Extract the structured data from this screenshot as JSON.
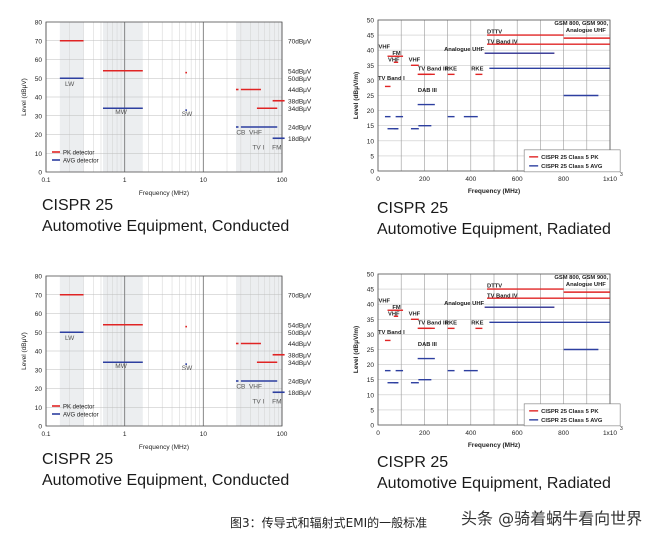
{
  "chart_data": [
    {
      "type": "line",
      "title": "CISPR 25",
      "subtitle": "Automotive Equipment, Conducted",
      "xlabel": "Frequency (MHz)",
      "ylabel": "Level (dBμV)",
      "x_scale": "log",
      "xlim": [
        0.1,
        100
      ],
      "ylim": [
        0,
        80
      ],
      "x_ticks": [
        "0.1",
        "1",
        "10",
        "100"
      ],
      "y_ticks": [
        "0",
        "10",
        "20",
        "30",
        "40",
        "50",
        "60",
        "70",
        "80"
      ],
      "right_labels": [
        {
          "text": "70dBμV",
          "y": 70
        },
        {
          "text": "54dBμV",
          "y": 54
        },
        {
          "text": "50dBμV",
          "y": 50
        },
        {
          "text": "44dBμV",
          "y": 44
        },
        {
          "text": "38dBμV",
          "y": 38
        },
        {
          "text": "34dBμV",
          "y": 34
        },
        {
          "text": "24dBμV",
          "y": 24
        },
        {
          "text": "18dBμV",
          "y": 18
        }
      ],
      "band_labels": [
        {
          "text": "LW",
          "x": 0.2,
          "y": 46
        },
        {
          "text": "MW",
          "x": 0.9,
          "y": 31
        },
        {
          "text": "SW",
          "x": 6.2,
          "y": 30
        },
        {
          "text": "CB",
          "x": 30,
          "y": 20
        },
        {
          "text": "VHF",
          "x": 46,
          "y": 20
        },
        {
          "text": "TV I",
          "x": 50,
          "y": 12
        },
        {
          "text": "FM",
          "x": 86,
          "y": 12
        }
      ],
      "series": [
        {
          "name": "PK detector",
          "color": "#e02424",
          "segments": [
            {
              "x": [
                0.15,
                0.3
              ],
              "y": 70
            },
            {
              "x": [
                0.53,
                1.7
              ],
              "y": 54
            },
            {
              "x": [
                5.9,
                6.2
              ],
              "y": 53
            },
            {
              "x": [
                26,
                28
              ],
              "y": 44
            },
            {
              "x": [
                30,
                54
              ],
              "y": 44
            },
            {
              "x": [
                48,
                87
              ],
              "y": 34
            },
            {
              "x": [
                76,
                108
              ],
              "y": 38
            }
          ]
        },
        {
          "name": "AVG detector",
          "color": "#2d3fa0",
          "segments": [
            {
              "x": [
                0.15,
                0.3
              ],
              "y": 50
            },
            {
              "x": [
                0.53,
                1.7
              ],
              "y": 34
            },
            {
              "x": [
                5.9,
                6.2
              ],
              "y": 33
            },
            {
              "x": [
                26,
                28
              ],
              "y": 24
            },
            {
              "x": [
                30,
                87
              ],
              "y": 24
            },
            {
              "x": [
                76,
                108
              ],
              "y": 18
            }
          ]
        }
      ]
    },
    {
      "type": "line",
      "title": "CISPR 25",
      "subtitle": "Automotive Equipment, Radiated",
      "xlabel": "Frequency (MHz)",
      "ylabel": "Level (dBμV/m)",
      "x_scale": "linear",
      "xlim": [
        0,
        1000
      ],
      "ylim": [
        0,
        50
      ],
      "x_ticks": [
        "0",
        "200",
        "400",
        "600",
        "800",
        "1x10"
      ],
      "x_multiplier_exponent": "3",
      "y_ticks": [
        "0",
        "5",
        "10",
        "15",
        "20",
        "25",
        "30",
        "35",
        "40",
        "45",
        "50"
      ],
      "band_labels": [
        {
          "text": "TV Band I",
          "x": 0,
          "y": 30.2
        },
        {
          "text": "VHF",
          "x": 2,
          "y": 40.5
        },
        {
          "text": "FM",
          "x": 62,
          "y": 38.4
        },
        {
          "text": "VHF",
          "x": 43,
          "y": 36.2
        },
        {
          "text": "VHF",
          "x": 132,
          "y": 36.2
        },
        {
          "text": "TV Band III",
          "x": 172,
          "y": 33.3
        },
        {
          "text": "DAB III",
          "x": 172,
          "y": 26.2
        },
        {
          "text": "RKE",
          "x": 288,
          "y": 33.3
        },
        {
          "text": "RKE",
          "x": 402,
          "y": 33.3
        },
        {
          "text": "DTTV",
          "x": 470,
          "y": 45.6
        },
        {
          "text": "TV Band IV",
          "x": 470,
          "y": 42.3
        },
        {
          "text": "Analogue UHF",
          "x": 285,
          "y": 39.8
        },
        {
          "text": "GSM 800, GSM 900,",
          "x": 760,
          "y": 48.3
        },
        {
          "text": "Analogue UHF",
          "x": 810,
          "y": 46
        }
      ],
      "series": [
        {
          "name": "CISPR 25 Class 5 PK",
          "color": "#e02424",
          "segments": [
            {
              "x": [
                30,
                54
              ],
              "y": 28
            },
            {
              "x": [
                41,
                88
              ],
              "y": 38
            },
            {
              "x": [
                68,
                87
              ],
              "y": 36
            },
            {
              "x": [
                76,
                108
              ],
              "y": 38
            },
            {
              "x": [
                142,
                176
              ],
              "y": 35
            },
            {
              "x": [
                174,
                230
              ],
              "y": 32
            },
            {
              "x": [
                171,
                245
              ],
              "y": 32
            },
            {
              "x": [
                300,
                330
              ],
              "y": 32
            },
            {
              "x": [
                420,
                450
              ],
              "y": 32
            },
            {
              "x": [
                470,
                800
              ],
              "y": 45
            },
            {
              "x": [
                470,
                800
              ],
              "y": 42
            },
            {
              "x": [
                460,
                760
              ],
              "y": 39
            },
            {
              "x": [
                800,
                1000
              ],
              "y": 44
            },
            {
              "x": [
                800,
                1000
              ],
              "y": 42
            }
          ]
        },
        {
          "name": "CISPR 25 Class 5 AVG",
          "color": "#2d3fa0",
          "segments": [
            {
              "x": [
                30,
                54
              ],
              "y": 18
            },
            {
              "x": [
                41,
                88
              ],
              "y": 14
            },
            {
              "x": [
                68,
                87
              ],
              "y": 14
            },
            {
              "x": [
                76,
                108
              ],
              "y": 18
            },
            {
              "x": [
                142,
                176
              ],
              "y": 14
            },
            {
              "x": [
                174,
                230
              ],
              "y": 15
            },
            {
              "x": [
                171,
                245
              ],
              "y": 22
            },
            {
              "x": [
                300,
                330
              ],
              "y": 18
            },
            {
              "x": [
                370,
                430
              ],
              "y": 18
            },
            {
              "x": [
                480,
                1000
              ],
              "y": 34
            },
            {
              "x": [
                460,
                760
              ],
              "y": 39
            },
            {
              "x": [
                800,
                950
              ],
              "y": 25
            }
          ]
        }
      ]
    },
    {
      "type": "line",
      "title": "CISPR 25",
      "subtitle": "Automotive Equipment, Conducted",
      "xlabel": "Frequency (MHz)",
      "ylabel": "Level (dBμV)",
      "x_scale": "log",
      "xlim": [
        0.1,
        100
      ],
      "ylim": [
        0,
        80
      ],
      "x_ticks": [
        "0.1",
        "1",
        "10",
        "100"
      ],
      "y_ticks": [
        "0",
        "10",
        "20",
        "30",
        "40",
        "50",
        "60",
        "70",
        "80"
      ],
      "right_labels": [
        {
          "text": "70dBμV",
          "y": 70
        },
        {
          "text": "54dBμV",
          "y": 54
        },
        {
          "text": "50dBμV",
          "y": 50
        },
        {
          "text": "44dBμV",
          "y": 44
        },
        {
          "text": "38dBμV",
          "y": 38
        },
        {
          "text": "34dBμV",
          "y": 34
        },
        {
          "text": "24dBμV",
          "y": 24
        },
        {
          "text": "18dBμV",
          "y": 18
        }
      ],
      "band_labels": [
        {
          "text": "LW",
          "x": 0.2,
          "y": 46
        },
        {
          "text": "MW",
          "x": 0.9,
          "y": 31
        },
        {
          "text": "SW",
          "x": 6.2,
          "y": 30
        },
        {
          "text": "CB",
          "x": 30,
          "y": 20
        },
        {
          "text": "VHF",
          "x": 46,
          "y": 20
        },
        {
          "text": "TV I",
          "x": 50,
          "y": 12
        },
        {
          "text": "FM",
          "x": 86,
          "y": 12
        }
      ],
      "series": [
        {
          "name": "PK detector",
          "color": "#e02424",
          "segments": [
            {
              "x": [
                0.15,
                0.3
              ],
              "y": 70
            },
            {
              "x": [
                0.53,
                1.7
              ],
              "y": 54
            },
            {
              "x": [
                5.9,
                6.2
              ],
              "y": 53
            },
            {
              "x": [
                26,
                28
              ],
              "y": 44
            },
            {
              "x": [
                30,
                54
              ],
              "y": 44
            },
            {
              "x": [
                48,
                87
              ],
              "y": 34
            },
            {
              "x": [
                76,
                108
              ],
              "y": 38
            }
          ]
        },
        {
          "name": "AVG detector",
          "color": "#2d3fa0",
          "segments": [
            {
              "x": [
                0.15,
                0.3
              ],
              "y": 50
            },
            {
              "x": [
                0.53,
                1.7
              ],
              "y": 34
            },
            {
              "x": [
                5.9,
                6.2
              ],
              "y": 33
            },
            {
              "x": [
                26,
                28
              ],
              "y": 24
            },
            {
              "x": [
                30,
                87
              ],
              "y": 24
            },
            {
              "x": [
                76,
                108
              ],
              "y": 18
            }
          ]
        }
      ]
    },
    {
      "type": "line",
      "title": "CISPR 25",
      "subtitle": "Automotive Equipment, Radiated",
      "xlabel": "Frequency (MHz)",
      "ylabel": "Level (dBμV/m)",
      "x_scale": "linear",
      "xlim": [
        0,
        1000
      ],
      "ylim": [
        0,
        50
      ],
      "x_ticks": [
        "0",
        "200",
        "400",
        "600",
        "800",
        "1x10"
      ],
      "x_multiplier_exponent": "3",
      "y_ticks": [
        "0",
        "5",
        "10",
        "15",
        "20",
        "25",
        "30",
        "35",
        "40",
        "45",
        "50"
      ],
      "band_labels": [
        {
          "text": "TV Band I",
          "x": 0,
          "y": 30.2
        },
        {
          "text": "VHF",
          "x": 2,
          "y": 40.5
        },
        {
          "text": "FM",
          "x": 62,
          "y": 38.4
        },
        {
          "text": "VHF",
          "x": 43,
          "y": 36.2
        },
        {
          "text": "VHF",
          "x": 132,
          "y": 36.2
        },
        {
          "text": "TV Band III",
          "x": 172,
          "y": 33.3
        },
        {
          "text": "DAB III",
          "x": 172,
          "y": 26.2
        },
        {
          "text": "RKE",
          "x": 288,
          "y": 33.3
        },
        {
          "text": "RKE",
          "x": 402,
          "y": 33.3
        },
        {
          "text": "DTTV",
          "x": 470,
          "y": 45.6
        },
        {
          "text": "TV Band IV",
          "x": 470,
          "y": 42.3
        },
        {
          "text": "Analogue UHF",
          "x": 285,
          "y": 39.8
        },
        {
          "text": "GSM 800, GSM 900,",
          "x": 760,
          "y": 48.3
        },
        {
          "text": "Analogue UHF",
          "x": 810,
          "y": 46
        }
      ],
      "series": [
        {
          "name": "CISPR 25 Class 5 PK",
          "color": "#e02424",
          "segments": [
            {
              "x": [
                30,
                54
              ],
              "y": 28
            },
            {
              "x": [
                41,
                88
              ],
              "y": 38
            },
            {
              "x": [
                68,
                87
              ],
              "y": 36
            },
            {
              "x": [
                76,
                108
              ],
              "y": 38
            },
            {
              "x": [
                142,
                176
              ],
              "y": 35
            },
            {
              "x": [
                174,
                230
              ],
              "y": 32
            },
            {
              "x": [
                171,
                245
              ],
              "y": 32
            },
            {
              "x": [
                300,
                330
              ],
              "y": 32
            },
            {
              "x": [
                420,
                450
              ],
              "y": 32
            },
            {
              "x": [
                470,
                800
              ],
              "y": 45
            },
            {
              "x": [
                470,
                800
              ],
              "y": 42
            },
            {
              "x": [
                460,
                760
              ],
              "y": 39
            },
            {
              "x": [
                800,
                1000
              ],
              "y": 44
            },
            {
              "x": [
                800,
                1000
              ],
              "y": 42
            }
          ]
        },
        {
          "name": "CISPR 25 Class 5 AVG",
          "color": "#2d3fa0",
          "segments": [
            {
              "x": [
                30,
                54
              ],
              "y": 18
            },
            {
              "x": [
                41,
                88
              ],
              "y": 14
            },
            {
              "x": [
                68,
                87
              ],
              "y": 14
            },
            {
              "x": [
                76,
                108
              ],
              "y": 18
            },
            {
              "x": [
                142,
                176
              ],
              "y": 14
            },
            {
              "x": [
                174,
                230
              ],
              "y": 15
            },
            {
              "x": [
                171,
                245
              ],
              "y": 22
            },
            {
              "x": [
                300,
                330
              ],
              "y": 18
            },
            {
              "x": [
                370,
                430
              ],
              "y": 18
            },
            {
              "x": [
                480,
                1000
              ],
              "y": 34
            },
            {
              "x": [
                460,
                760
              ],
              "y": 39
            },
            {
              "x": [
                800,
                950
              ],
              "y": 25
            }
          ]
        }
      ]
    }
  ],
  "caption": "图3：传导式和辐射式EMI的一般标准",
  "watermark": "头条 @骑着蜗牛看向世界",
  "colors": {
    "pk": "#e02424",
    "avg": "#2d3fa0",
    "grid": "#9a9a9a",
    "band": "#eceef0"
  }
}
